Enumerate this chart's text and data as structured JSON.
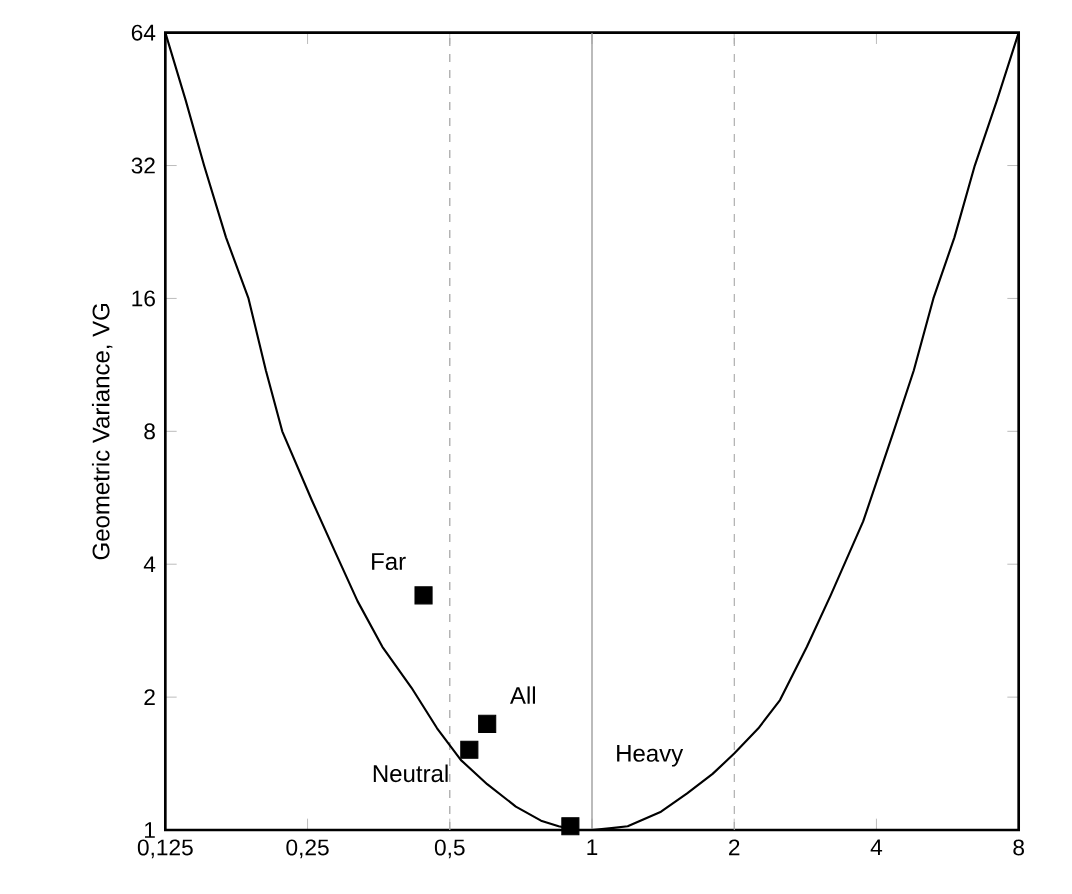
{
  "chart_data": {
    "type": "scatter",
    "ylabel": "Geometric Variance, VG",
    "log": "xy",
    "grid": false,
    "xlim": [
      0.125,
      8
    ],
    "ylim": [
      1,
      64
    ],
    "xticks": [
      {
        "value": 0.125,
        "label": "0,125"
      },
      {
        "value": 0.25,
        "label": "0,25"
      },
      {
        "value": 0.5,
        "label": "0,5"
      },
      1,
      2,
      4,
      8
    ],
    "yticks": [
      1,
      2,
      4,
      8,
      16,
      32,
      64
    ],
    "series": [
      {
        "type": "line",
        "color": "#000000",
        "marker": "none",
        "line_style": "solid",
        "x": [
          0.125,
          0.138,
          0.151,
          0.168,
          0.1875,
          0.204,
          0.221,
          0.255,
          0.285,
          0.319,
          0.36,
          0.415,
          0.47,
          0.528,
          0.6,
          0.69,
          0.78,
          0.85,
          0.93,
          1,
          1.1,
          1.19,
          1.4,
          1.59,
          1.8,
          2,
          2.25,
          2.5,
          2.85,
          3.2,
          3.75,
          4.35,
          4.8,
          5.28,
          5.85,
          6.46,
          7.2,
          8
        ],
        "values": [
          64,
          45,
          32,
          22,
          16,
          11,
          8,
          5.6,
          4.3,
          3.3,
          2.6,
          2.1,
          1.7,
          1.44,
          1.27,
          1.13,
          1.05,
          1.02,
          1,
          1,
          1.01,
          1.02,
          1.1,
          1.21,
          1.34,
          1.49,
          1.7,
          1.97,
          2.6,
          3.4,
          5,
          8,
          11,
          16,
          22,
          32,
          45,
          64
        ]
      },
      {
        "type": "scatter",
        "color": "#000000",
        "marker": "square",
        "x": [
          0.44,
          0.6,
          0.55,
          0.9
        ],
        "values": [
          3.4,
          1.74,
          1.52,
          1.02
        ]
      }
    ],
    "ref_lines": [
      {
        "axis": "x",
        "value": 0.5,
        "color": "#aaaaaa",
        "line_style": "dashed"
      },
      {
        "axis": "x",
        "value": 1,
        "color": "#999999",
        "line_style": "solid"
      },
      {
        "axis": "x",
        "value": 2,
        "color": "#aaaaaa",
        "line_style": "dashed"
      }
    ],
    "annotations": [
      {
        "text": "Far",
        "x": 0.44,
        "y": 3.4
      },
      {
        "text": "All",
        "x": 0.6,
        "y": 1.74
      },
      {
        "text": "Neutral",
        "x": 0.55,
        "y": 1.52
      },
      "Heavy"
    ]
  }
}
